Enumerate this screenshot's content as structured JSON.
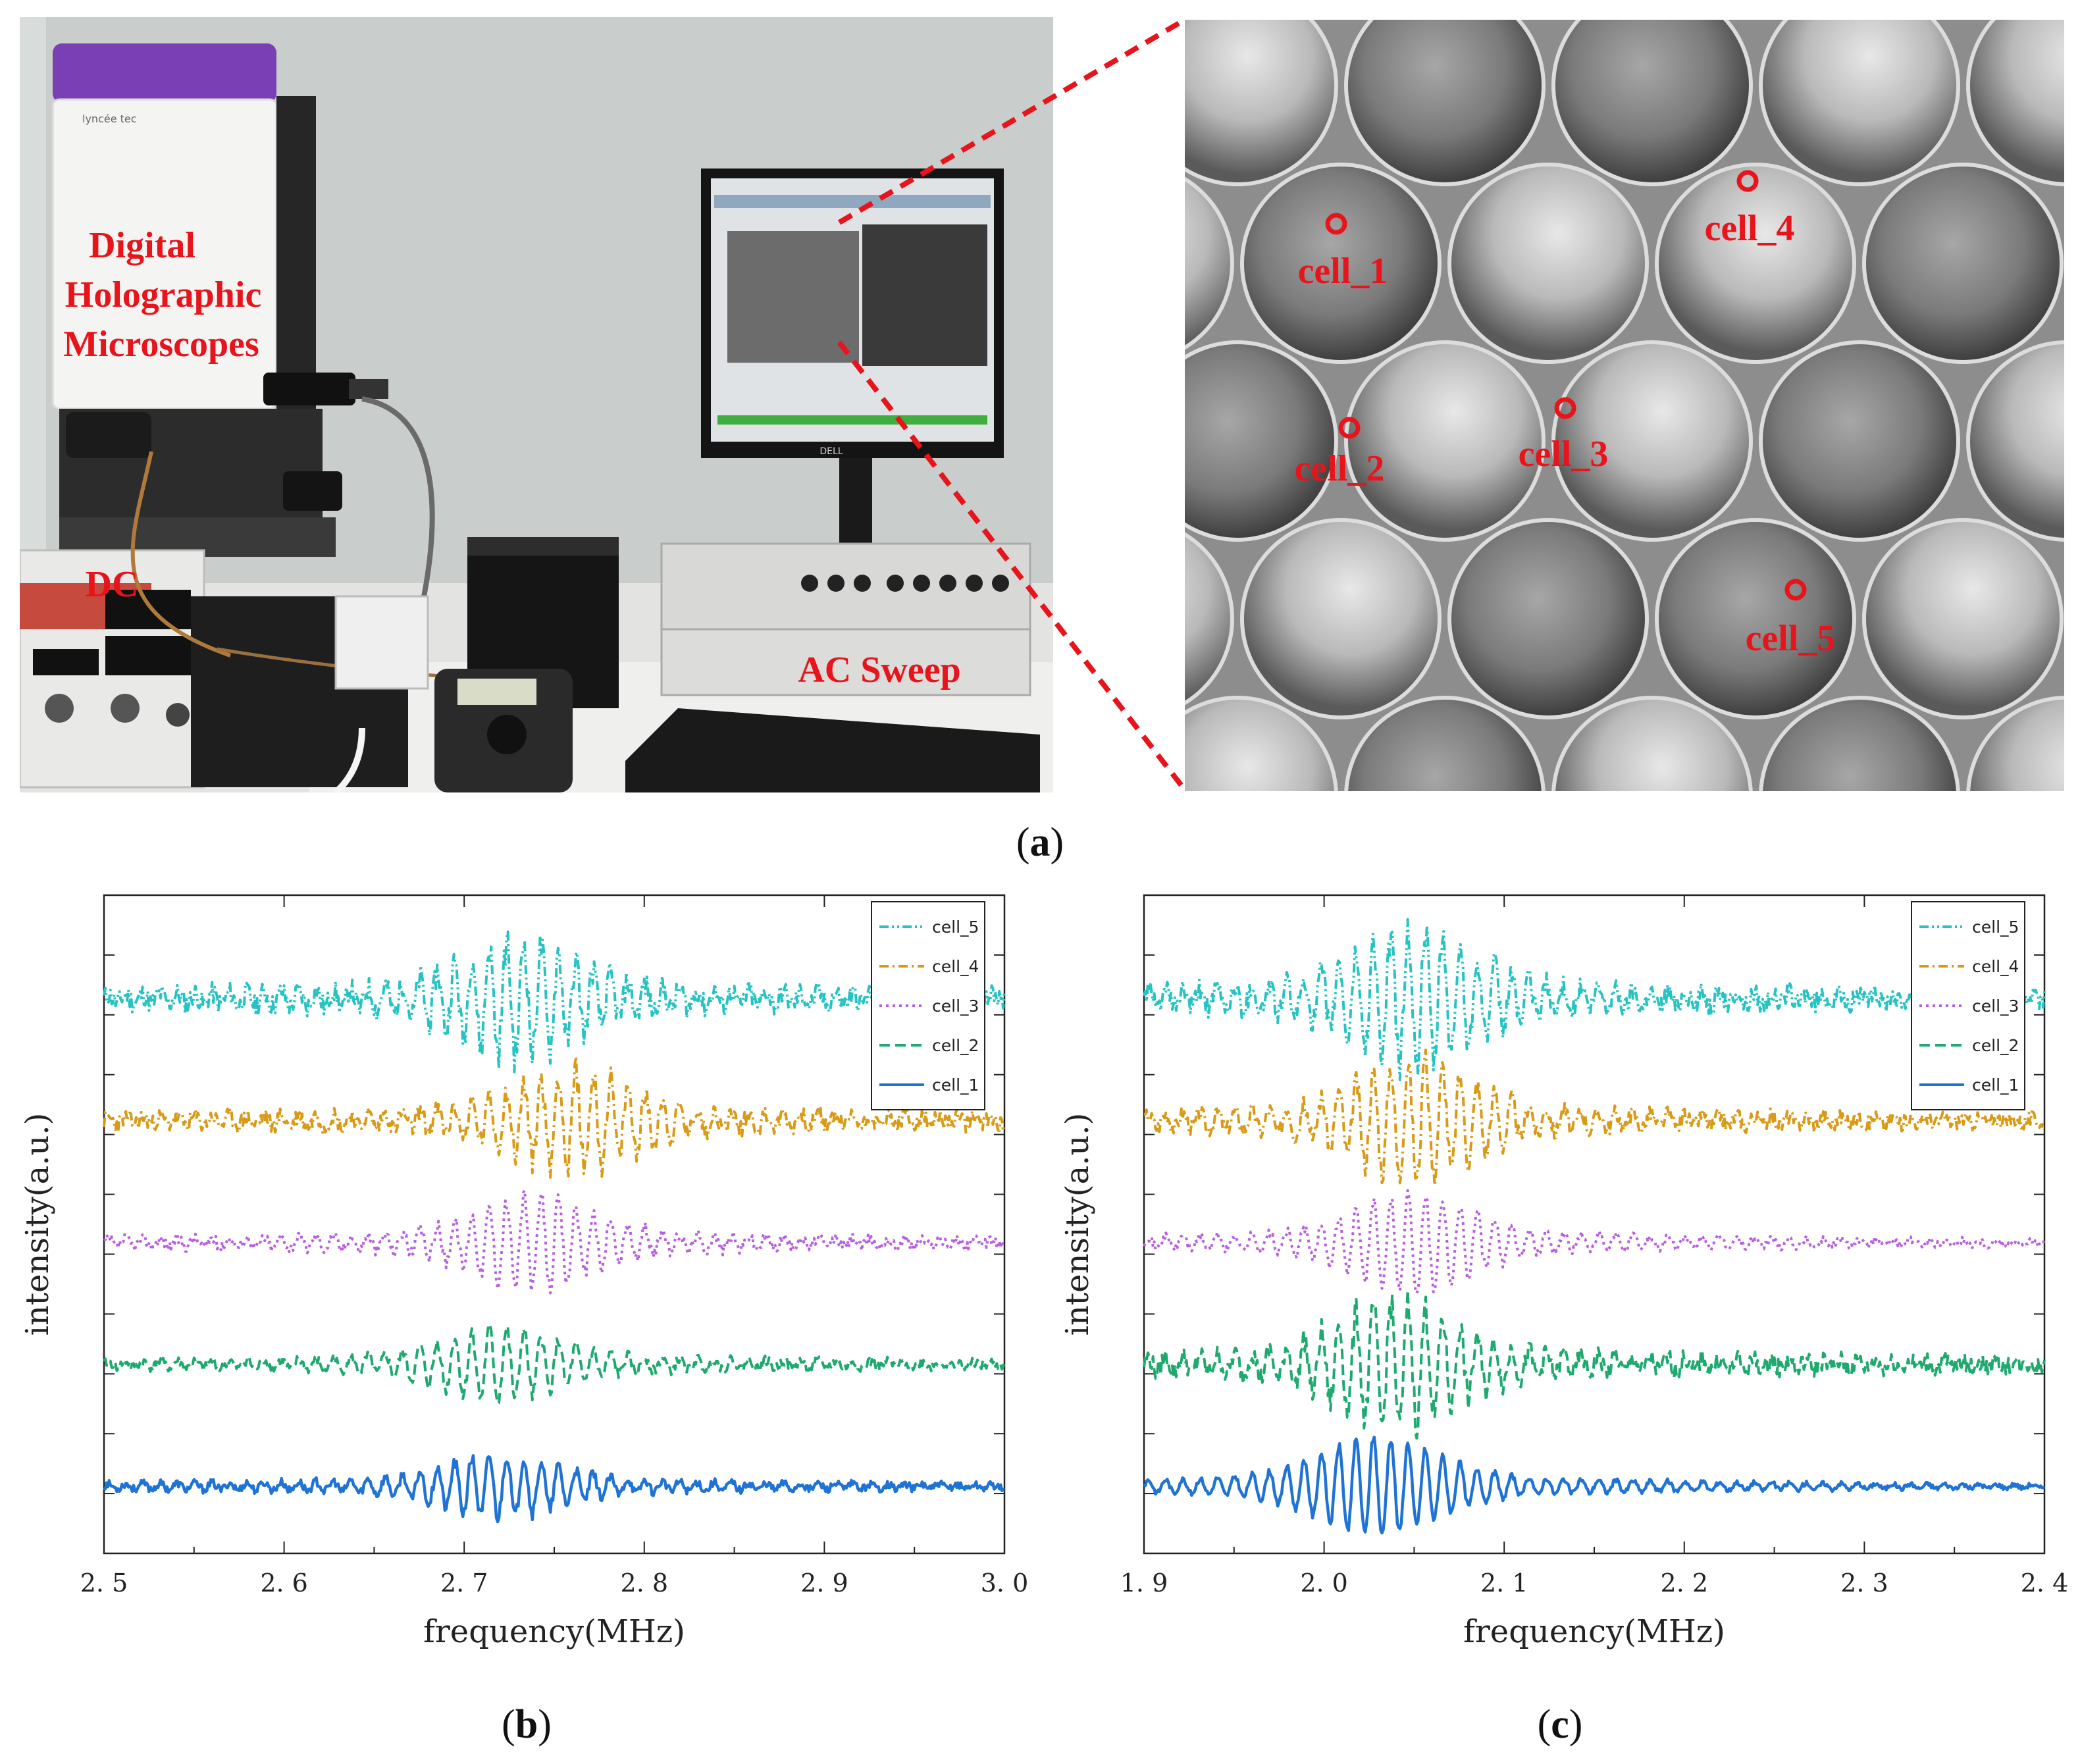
{
  "panel_a": {
    "caption_letter": "a",
    "labels": {
      "microscope": [
        "Digital",
        "Holographic",
        "Microscopes"
      ],
      "dc": "DC",
      "ac_sweep": "AC Sweep"
    },
    "device_text": {
      "brand": "lyncée tec",
      "monitor_brand": "DELL"
    },
    "cell_markers": [
      "cell_1",
      "cell_2",
      "cell_3",
      "cell_4",
      "cell_5"
    ],
    "colors": {
      "annotation": "#e8141c",
      "zoom_line": "#e8141c"
    }
  },
  "panel_b_letter": "b",
  "panel_c_letter": "c",
  "chart_data": [
    {
      "id": "b",
      "type": "line",
      "xlabel": "frequency(MHz)",
      "ylabel": "intensity(a.u.)",
      "xlim": [
        2.5,
        3.0
      ],
      "x_ticks": [
        2.5,
        2.6,
        2.7,
        2.8,
        2.9,
        3.0
      ],
      "x_tick_labels": [
        "2. 5",
        "2. 6",
        "2. 7",
        "2. 8",
        "2. 9",
        "3. 0"
      ],
      "legend": "top-right",
      "resonance_center": 2.72,
      "series": [
        {
          "name": "cell_5",
          "color": "#27c3c3",
          "style": "dash-dot-dot",
          "offset": 4,
          "resonance": 2.73,
          "amplitude": 0.35,
          "noise": 0.14,
          "seed": 11
        },
        {
          "name": "cell_4",
          "color": "#d99a16",
          "style": "dash-dot",
          "offset": 3,
          "resonance": 2.76,
          "amplitude": 0.3,
          "noise": 0.11,
          "seed": 23
        },
        {
          "name": "cell_3",
          "color": "#b85fe0",
          "style": "dot",
          "offset": 2,
          "resonance": 2.74,
          "amplitude": 0.28,
          "noise": 0.07,
          "seed": 37
        },
        {
          "name": "cell_2",
          "color": "#1eaa6e",
          "style": "dash",
          "offset": 1,
          "resonance": 2.72,
          "amplitude": 0.22,
          "noise": 0.06,
          "seed": 41
        },
        {
          "name": "cell_1",
          "color": "#1f73d4",
          "style": "solid",
          "offset": 0,
          "resonance": 2.72,
          "amplitude": 0.19,
          "noise": 0.05,
          "seed": 53
        }
      ]
    },
    {
      "id": "c",
      "type": "line",
      "xlabel": "frequency(MHz)",
      "ylabel": "intensity(a.u.)",
      "xlim": [
        1.9,
        2.4
      ],
      "x_ticks": [
        1.9,
        2.0,
        2.1,
        2.2,
        2.3,
        2.4
      ],
      "x_tick_labels": [
        "1. 9",
        "2. 0",
        "2. 1",
        "2. 2",
        "2. 3",
        "2. 4"
      ],
      "legend": "top-right",
      "resonance_center": 2.03,
      "series": [
        {
          "name": "cell_5",
          "color": "#27c3c3",
          "style": "dash-dot-dot",
          "offset": 4,
          "resonance": 2.05,
          "amplitude": 0.42,
          "noise": 0.13,
          "seed": 61
        },
        {
          "name": "cell_4",
          "color": "#d99a16",
          "style": "dash-dot",
          "offset": 3,
          "resonance": 2.05,
          "amplitude": 0.36,
          "noise": 0.1,
          "seed": 67
        },
        {
          "name": "cell_3",
          "color": "#b85fe0",
          "style": "dot",
          "offset": 2,
          "resonance": 2.05,
          "amplitude": 0.3,
          "noise": 0.05,
          "seed": 71
        },
        {
          "name": "cell_2",
          "color": "#1eaa6e",
          "style": "dash",
          "offset": 1,
          "resonance": 2.04,
          "amplitude": 0.38,
          "noise": 0.12,
          "seed": 79
        },
        {
          "name": "cell_1",
          "color": "#1f73d4",
          "style": "solid",
          "offset": 0,
          "resonance": 2.03,
          "amplitude": 0.3,
          "noise": 0.03,
          "seed": 83
        }
      ]
    }
  ]
}
